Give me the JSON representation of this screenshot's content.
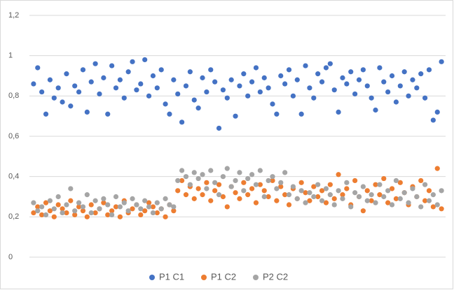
{
  "chart_data": {
    "type": "scatter",
    "x": [
      1,
      2,
      3,
      4,
      5,
      6,
      7,
      8,
      9,
      10,
      11,
      12,
      13,
      14,
      15,
      16,
      17,
      18,
      19,
      20,
      21,
      22,
      23,
      24,
      25,
      26,
      27,
      28,
      29,
      30,
      31,
      32,
      33,
      34,
      35,
      36,
      37,
      38,
      39,
      40,
      41,
      42,
      43,
      44,
      45,
      46,
      47,
      48,
      49,
      50,
      51,
      52,
      53,
      54,
      55,
      56,
      57,
      58,
      59,
      60,
      61,
      62,
      63,
      64,
      65,
      66,
      67,
      68,
      69,
      70,
      71,
      72,
      73,
      74,
      75,
      76,
      77,
      78,
      79,
      80,
      81,
      82,
      83,
      84,
      85,
      86,
      87,
      88,
      89,
      90,
      91,
      92,
      93,
      94,
      95,
      96,
      97,
      98,
      99,
      100
    ],
    "series": [
      {
        "name": "P1 C1",
        "color": "#4472c4",
        "values": [
          0.86,
          0.94,
          0.82,
          0.71,
          0.88,
          0.79,
          0.84,
          0.77,
          0.91,
          0.75,
          0.85,
          0.82,
          0.93,
          0.72,
          0.87,
          0.96,
          0.81,
          0.89,
          0.71,
          0.95,
          0.84,
          0.88,
          0.79,
          0.92,
          0.97,
          0.83,
          0.86,
          0.98,
          0.8,
          0.9,
          0.84,
          0.93,
          0.76,
          0.71,
          0.88,
          0.81,
          0.67,
          0.85,
          0.92,
          0.78,
          0.74,
          0.89,
          0.82,
          0.93,
          0.87,
          0.64,
          0.83,
          0.79,
          0.88,
          0.7,
          0.85,
          0.91,
          0.8,
          0.87,
          0.94,
          0.82,
          0.89,
          0.84,
          0.76,
          0.71,
          0.9,
          0.86,
          0.93,
          0.8,
          0.88,
          0.71,
          0.95,
          0.84,
          0.79,
          0.91,
          0.87,
          0.94,
          0.96,
          0.83,
          0.72,
          0.89,
          0.86,
          0.92,
          0.81,
          0.88,
          0.93,
          0.85,
          0.79,
          0.73,
          0.94,
          0.87,
          0.82,
          0.9,
          0.77,
          0.85,
          0.92,
          0.8,
          0.88,
          0.84,
          0.91,
          0.79,
          0.93,
          0.68,
          0.72,
          0.97
        ]
      },
      {
        "name": "P1 C2",
        "color": "#ed7d31",
        "values": [
          0.22,
          0.25,
          0.21,
          0.27,
          0.23,
          0.2,
          0.26,
          0.24,
          0.22,
          0.28,
          0.21,
          0.25,
          0.23,
          0.2,
          0.26,
          0.22,
          0.24,
          0.27,
          0.21,
          0.23,
          0.25,
          0.2,
          0.28,
          0.22,
          0.24,
          0.26,
          0.21,
          0.23,
          0.27,
          0.25,
          0.22,
          0.24,
          0.2,
          0.26,
          0.23,
          0.33,
          0.38,
          0.31,
          0.35,
          0.29,
          0.34,
          0.31,
          0.37,
          0.28,
          0.33,
          0.36,
          0.3,
          0.25,
          0.35,
          0.32,
          0.29,
          0.37,
          0.31,
          0.34,
          0.27,
          0.36,
          0.33,
          0.3,
          0.38,
          0.28,
          0.35,
          0.31,
          0.26,
          0.34,
          0.29,
          0.37,
          0.32,
          0.28,
          0.35,
          0.3,
          0.33,
          0.27,
          0.36,
          0.29,
          0.41,
          0.31,
          0.34,
          0.26,
          0.38,
          0.3,
          0.23,
          0.33,
          0.28,
          0.36,
          0.31,
          0.39,
          0.27,
          0.34,
          0.29,
          0.37,
          0.32,
          0.26,
          0.35,
          0.3,
          0.38,
          0.28,
          0.33,
          0.25,
          0.44,
          0.24
        ]
      },
      {
        "name": "P2 C2",
        "color": "#a5a5a5",
        "values": [
          0.27,
          0.23,
          0.25,
          0.21,
          0.28,
          0.24,
          0.3,
          0.22,
          0.26,
          0.34,
          0.23,
          0.27,
          0.25,
          0.31,
          0.22,
          0.28,
          0.24,
          0.29,
          0.26,
          0.21,
          0.3,
          0.25,
          0.27,
          0.23,
          0.29,
          0.26,
          0.24,
          0.28,
          0.25,
          0.22,
          0.27,
          0.24,
          0.29,
          0.26,
          0.25,
          0.38,
          0.43,
          0.4,
          0.36,
          0.42,
          0.39,
          0.41,
          0.34,
          0.43,
          0.37,
          0.31,
          0.4,
          0.44,
          0.35,
          0.38,
          0.42,
          0.33,
          0.39,
          0.41,
          0.36,
          0.43,
          0.3,
          0.38,
          0.4,
          0.34,
          0.37,
          0.42,
          0.31,
          0.35,
          0.29,
          0.33,
          0.27,
          0.32,
          0.3,
          0.36,
          0.28,
          0.34,
          0.31,
          0.26,
          0.33,
          0.29,
          0.37,
          0.25,
          0.32,
          0.3,
          0.35,
          0.28,
          0.31,
          0.27,
          0.36,
          0.3,
          0.33,
          0.26,
          0.38,
          0.29,
          0.32,
          0.27,
          0.34,
          0.3,
          0.25,
          0.36,
          0.28,
          0.31,
          0.26,
          0.33
        ]
      }
    ],
    "xlim": [
      0,
      101
    ],
    "ylim": [
      0,
      1.2
    ],
    "yticks": [
      0,
      {
        "value": 0.2,
        "label": "0,2"
      },
      {
        "value": 0.4,
        "label": "0,4"
      },
      {
        "value": 0.6,
        "label": "0,6"
      },
      {
        "value": 0.8,
        "label": "0,8"
      },
      1,
      {
        "value": 1.2,
        "label": "1,2"
      }
    ],
    "grid": true,
    "legend": "bottom"
  }
}
